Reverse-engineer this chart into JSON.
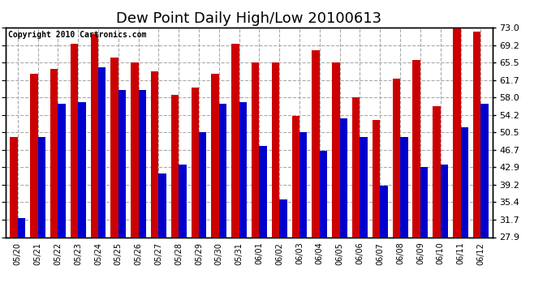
{
  "title": "Dew Point Daily High/Low 20100613",
  "copyright": "Copyright 2010 Cartronics.com",
  "dates": [
    "05/20",
    "05/21",
    "05/22",
    "05/23",
    "05/24",
    "05/25",
    "05/26",
    "05/27",
    "05/28",
    "05/29",
    "05/30",
    "05/31",
    "06/01",
    "06/02",
    "06/03",
    "06/04",
    "06/05",
    "06/06",
    "06/07",
    "06/08",
    "06/09",
    "06/10",
    "06/11",
    "06/12"
  ],
  "high": [
    49.5,
    63.0,
    64.0,
    69.5,
    71.5,
    66.5,
    65.5,
    63.5,
    58.5,
    60.0,
    63.0,
    69.5,
    65.5,
    65.5,
    54.0,
    68.0,
    65.5,
    58.0,
    53.0,
    62.0,
    66.0,
    56.0,
    74.0,
    72.0
  ],
  "low": [
    32.0,
    49.5,
    56.5,
    57.0,
    64.5,
    59.5,
    59.5,
    41.5,
    43.5,
    50.5,
    56.5,
    57.0,
    47.5,
    36.0,
    50.5,
    46.5,
    53.5,
    49.5,
    39.0,
    49.5,
    43.0,
    43.5,
    51.5,
    56.5
  ],
  "high_color": "#cc0000",
  "low_color": "#0000cc",
  "bg_color": "#ffffff",
  "grid_color": "#aaaaaa",
  "yticks": [
    27.9,
    31.7,
    35.4,
    39.2,
    42.9,
    46.7,
    50.5,
    54.2,
    58.0,
    61.7,
    65.5,
    69.2,
    73.0
  ],
  "ymin": 27.9,
  "ymax": 73.0,
  "title_fontsize": 13,
  "copyright_fontsize": 7,
  "tick_fontsize": 8,
  "xlabel_fontsize": 7
}
